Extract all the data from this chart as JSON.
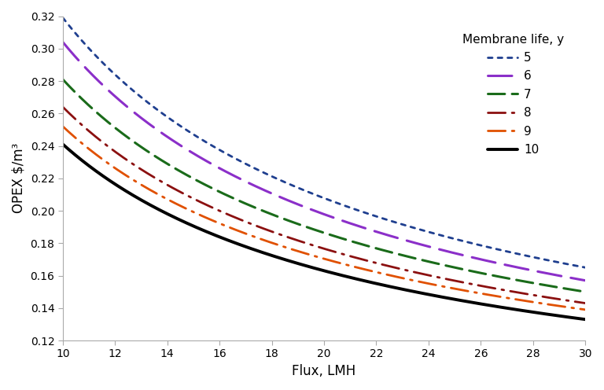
{
  "title": "",
  "xlabel": "Flux, LMH",
  "ylabel": "OPEX $/m³",
  "xlim": [
    10,
    30
  ],
  "ylim": [
    0.12,
    0.32
  ],
  "xticks": [
    10,
    12,
    14,
    16,
    18,
    20,
    22,
    24,
    26,
    28,
    30
  ],
  "yticks": [
    0.12,
    0.14,
    0.16,
    0.18,
    0.2,
    0.22,
    0.24,
    0.26,
    0.28,
    0.3,
    0.32
  ],
  "legend_title": "Membrane life, y",
  "series": [
    {
      "label": "5",
      "color": "#1F3F8F",
      "linewidth": 2.0,
      "f10": 0.319,
      "f30": 0.165
    },
    {
      "label": "6",
      "color": "#8B2FC9",
      "linewidth": 2.2,
      "f10": 0.304,
      "f30": 0.157
    },
    {
      "label": "7",
      "color": "#1A6B1A",
      "linewidth": 2.2,
      "f10": 0.281,
      "f30": 0.15
    },
    {
      "label": "8",
      "color": "#8B1010",
      "linewidth": 2.0,
      "f10": 0.264,
      "f30": 0.143
    },
    {
      "label": "9",
      "color": "#E05000",
      "linewidth": 2.0,
      "f10": 0.252,
      "f30": 0.139
    },
    {
      "label": "10",
      "color": "#000000",
      "linewidth": 2.8,
      "f10": 0.241,
      "f30": 0.133
    }
  ],
  "power": 0.75,
  "flux_min": 10,
  "flux_max": 30,
  "background_color": "#FFFFFF",
  "figsize": [
    7.68,
    4.96
  ],
  "dpi": 100
}
